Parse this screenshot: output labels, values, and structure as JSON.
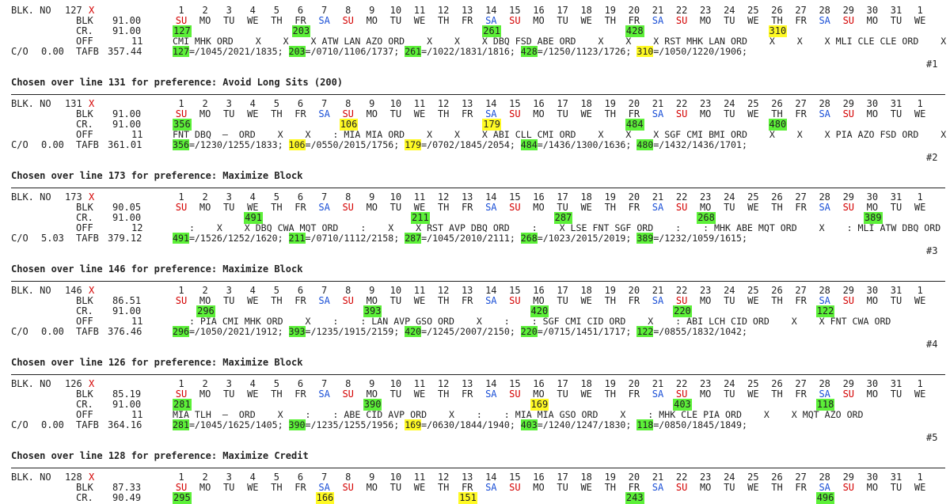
{
  "day_numbers": [
    "1",
    "2",
    "3",
    "4",
    "5",
    "6",
    "7",
    "8",
    "9",
    "10",
    "11",
    "12",
    "13",
    "14",
    "15",
    "16",
    "17",
    "18",
    "19",
    "20",
    "21",
    "22",
    "23",
    "24",
    "25",
    "26",
    "27",
    "28",
    "29",
    "30",
    "31",
    "1"
  ],
  "labels": {
    "blk": "BLK. NO",
    "blk2": "BLK",
    "cr": "CR.",
    "off": "OFF",
    "co": "C/O",
    "tafb": "TAFB"
  },
  "colors": {
    "green": "#5cf038",
    "yellow": "#fffa24",
    "sunday_red": "#d40000",
    "saturday_blue": "#1a4fd6"
  },
  "blocks": [
    {
      "header": "",
      "line_no": "127",
      "marker": "X",
      "blk": "91.00",
      "cr": "91.00",
      "off": "11",
      "co": "0.00",
      "tafb": "357.44",
      "rank": "#1",
      "weekdays": [
        "SU",
        "MO",
        "TU",
        "WE",
        "TH",
        "FR",
        "SA",
        "SU",
        "MO",
        "TU",
        "WE",
        "TH",
        "FR",
        "SA",
        "SU",
        "MO",
        "TU",
        "WE",
        "TH",
        "FR",
        "SA",
        "SU",
        "MO",
        "TU",
        "WE",
        "TH",
        "FR",
        "SA",
        "SU",
        "MO",
        "TU",
        "WE"
      ],
      "trips": [
        {
          "day": 1,
          "num": "127",
          "hl": "g"
        },
        {
          "day": 6,
          "num": "203",
          "hl": "g"
        },
        {
          "day": 14,
          "num": "261",
          "hl": "g"
        },
        {
          "day": 20,
          "num": "428",
          "hl": "g"
        },
        {
          "day": 26,
          "num": "310",
          "hl": "y"
        }
      ],
      "cities": "CMI MHK ORD    X    X    X ATW LAN AZO ORD    X    X    X DBQ FSD ABE ORD    X    X    X RST MHK LAN ORD    X    X    X MLI CLE CLE ORD    X",
      "summary": [
        {
          "num": "127",
          "hl": "g",
          "times": "=/1045/2021/1835;"
        },
        {
          "num": "203",
          "hl": "g",
          "times": "=/0710/1106/1737;"
        },
        {
          "num": "261",
          "hl": "g",
          "times": "=/1022/1831/1816;"
        },
        {
          "num": "428",
          "hl": "g",
          "times": "=/1250/1123/1726;"
        },
        {
          "num": "310",
          "hl": "y",
          "times": "=/1050/1220/1906;"
        }
      ]
    },
    {
      "header": "Chosen over line 131 for preference: Avoid Long Sits (200)",
      "line_no": "131",
      "marker": "X",
      "blk": "91.00",
      "cr": "91.00",
      "off": "11",
      "co": "0.00",
      "tafb": "361.01",
      "rank": "#2",
      "weekdays": [
        "SU",
        "MO",
        "TU",
        "WE",
        "TH",
        "FR",
        "SA",
        "SU",
        "MO",
        "TU",
        "WE",
        "TH",
        "FR",
        "SA",
        "SU",
        "MO",
        "TU",
        "WE",
        "TH",
        "FR",
        "SA",
        "SU",
        "MO",
        "TU",
        "WE",
        "TH",
        "FR",
        "SA",
        "SU",
        "MO",
        "TU",
        "WE"
      ],
      "trips": [
        {
          "day": 1,
          "num": "356",
          "hl": "g"
        },
        {
          "day": 8,
          "num": "106",
          "hl": "y"
        },
        {
          "day": 14,
          "num": "179",
          "hl": "y"
        },
        {
          "day": 20,
          "num": "484",
          "hl": "g"
        },
        {
          "day": 26,
          "num": "480",
          "hl": "g"
        }
      ],
      "cities": "FNT DBQ  —  ORD    X    X    : MIA MIA ORD    X    X    X ABI CLL CMI ORD    X    X    X SGF CMI BMI ORD    X    X    X PIA AZO FSD ORD    X",
      "summary": [
        {
          "num": "356",
          "hl": "g",
          "times": "=/1230/1255/1833;"
        },
        {
          "num": "106",
          "hl": "y",
          "times": "=/0550/2015/1756;"
        },
        {
          "num": "179",
          "hl": "y",
          "times": "=/0702/1845/2054;"
        },
        {
          "num": "484",
          "hl": "g",
          "times": "=/1436/1300/1636;"
        },
        {
          "num": "480",
          "hl": "g",
          "times": "=/1432/1436/1701;"
        }
      ]
    },
    {
      "header": "Chosen over line 173 for preference: Maximize Block",
      "line_no": "173",
      "marker": "X",
      "blk": "90.05",
      "cr": "91.00",
      "off": "12",
      "co": "5.03",
      "tafb": "379.12",
      "rank": "#3",
      "weekdays": [
        "SU",
        "MO",
        "TU",
        "WE",
        "TH",
        "FR",
        "SA",
        "SU",
        "MO",
        "TU",
        "WE",
        "TH",
        "FR",
        "SA",
        "SU",
        "MO",
        "TU",
        "WE",
        "TH",
        "FR",
        "SA",
        "SU",
        "MO",
        "TU",
        "WE",
        "TH",
        "FR",
        "SA",
        "SU",
        "MO",
        "TU",
        "WE"
      ],
      "trips": [
        {
          "day": 4,
          "num": "491",
          "hl": "g"
        },
        {
          "day": 11,
          "num": "211",
          "hl": "g"
        },
        {
          "day": 17,
          "num": "287",
          "hl": "g"
        },
        {
          "day": 23,
          "num": "268",
          "hl": "g"
        },
        {
          "day": 30,
          "num": "389",
          "hl": "g"
        }
      ],
      "cities": "   :    X    X DBQ CWA MQT ORD    :    X    X RST AVP DBQ ORD    :    X LSE FNT SGF ORD    :    : MHK ABE MQT ORD    X    : MLI ATW DBQ ORD",
      "summary": [
        {
          "num": "491",
          "hl": "g",
          "times": "=/1526/1252/1620;"
        },
        {
          "num": "211",
          "hl": "g",
          "times": "=/0710/1112/2158;"
        },
        {
          "num": "287",
          "hl": "g",
          "times": "=/1045/2010/2111;"
        },
        {
          "num": "268",
          "hl": "g",
          "times": "=/1023/2015/2019;"
        },
        {
          "num": "389",
          "hl": "g",
          "times": "=/1232/1059/1615;"
        }
      ]
    },
    {
      "header": "Chosen over line 146 for preference: Maximize Block",
      "line_no": "146",
      "marker": "X",
      "blk": "86.51",
      "cr": "91.00",
      "off": "11",
      "co": "0.00",
      "tafb": "376.46",
      "rank": "#4",
      "weekdays": [
        "SU",
        "MO",
        "TU",
        "WE",
        "TH",
        "FR",
        "SA",
        "SU",
        "MO",
        "TU",
        "WE",
        "TH",
        "FR",
        "SA",
        "SU",
        "MO",
        "TU",
        "WE",
        "TH",
        "FR",
        "SA",
        "SU",
        "MO",
        "TU",
        "WE",
        "TH",
        "FR",
        "SA",
        "SU",
        "MO",
        "TU",
        "WE"
      ],
      "trips": [
        {
          "day": 2,
          "num": "296",
          "hl": "g"
        },
        {
          "day": 9,
          "num": "393",
          "hl": "g"
        },
        {
          "day": 16,
          "num": "420",
          "hl": "g"
        },
        {
          "day": 22,
          "num": "220",
          "hl": "g"
        },
        {
          "day": 28,
          "num": "122",
          "hl": "g"
        }
      ],
      "cities": "   : PIA CMI MHK ORD    X    :    : LAN AVP GSO ORD    X    :    : SGF CMI CID ORD    X    : ABI LCH CID ORD    X    X FNT CWA ORD",
      "summary": [
        {
          "num": "296",
          "hl": "g",
          "times": "=/1050/2021/1912;"
        },
        {
          "num": "393",
          "hl": "g",
          "times": "=/1235/1915/2159;"
        },
        {
          "num": "420",
          "hl": "g",
          "times": "=/1245/2007/2150;"
        },
        {
          "num": "220",
          "hl": "g",
          "times": "=/0715/1451/1717;"
        },
        {
          "num": "122",
          "hl": "g",
          "times": "=/0855/1832/1042;"
        }
      ]
    },
    {
      "header": "Chosen over line 126 for preference: Maximize Block",
      "line_no": "126",
      "marker": "X",
      "blk": "85.19",
      "cr": "91.00",
      "off": "11",
      "co": "0.00",
      "tafb": "364.16",
      "rank": "#5",
      "weekdays": [
        "SU",
        "MO",
        "TU",
        "WE",
        "TH",
        "FR",
        "SA",
        "SU",
        "MO",
        "TU",
        "WE",
        "TH",
        "FR",
        "SA",
        "SU",
        "MO",
        "TU",
        "WE",
        "TH",
        "FR",
        "SA",
        "SU",
        "MO",
        "TU",
        "WE",
        "TH",
        "FR",
        "SA",
        "SU",
        "MO",
        "TU",
        "WE"
      ],
      "trips": [
        {
          "day": 1,
          "num": "281",
          "hl": "g"
        },
        {
          "day": 9,
          "num": "390",
          "hl": "g"
        },
        {
          "day": 16,
          "num": "169",
          "hl": "y"
        },
        {
          "day": 22,
          "num": "403",
          "hl": "g"
        },
        {
          "day": 28,
          "num": "118",
          "hl": "g"
        }
      ],
      "cities": "MIA TLH  —  ORD    X    :    : ABE CID AVP ORD    X    :    : MIA MIA GSO ORD    X    : MHK CLE PIA ORD    X    X MQT AZO ORD",
      "summary": [
        {
          "num": "281",
          "hl": "g",
          "times": "=/1045/1625/1405;"
        },
        {
          "num": "390",
          "hl": "g",
          "times": "=/1235/1255/1956;"
        },
        {
          "num": "169",
          "hl": "y",
          "times": "=/0630/1844/1940;"
        },
        {
          "num": "403",
          "hl": "g",
          "times": "=/1240/1247/1830;"
        },
        {
          "num": "118",
          "hl": "g",
          "times": "=/0850/1845/1849;"
        }
      ]
    },
    {
      "header": "Chosen over line 128 for preference: Maximize Credit",
      "line_no": "128",
      "marker": "X",
      "blk": "87.33",
      "cr": "90.49",
      "off": "",
      "co": "",
      "tafb": "",
      "rank": "",
      "weekdays": [
        "SU",
        "MO",
        "TU",
        "WE",
        "TH",
        "FR",
        "SA",
        "SU",
        "MO",
        "TU",
        "WE",
        "TH",
        "FR",
        "SA",
        "SU",
        "MO",
        "TU",
        "WE",
        "TH",
        "FR",
        "SA",
        "SU",
        "MO",
        "TU",
        "WE",
        "TH",
        "FR",
        "SA",
        "SU",
        "MO",
        "TU",
        "WE"
      ],
      "trips": [
        {
          "day": 1,
          "num": "295",
          "hl": "g"
        },
        {
          "day": 7,
          "num": "166",
          "hl": "y"
        },
        {
          "day": 13,
          "num": "151",
          "hl": "y"
        },
        {
          "day": 20,
          "num": "243",
          "hl": "g"
        },
        {
          "day": 28,
          "num": "496",
          "hl": "g"
        }
      ],
      "cities": "",
      "summary": []
    }
  ]
}
